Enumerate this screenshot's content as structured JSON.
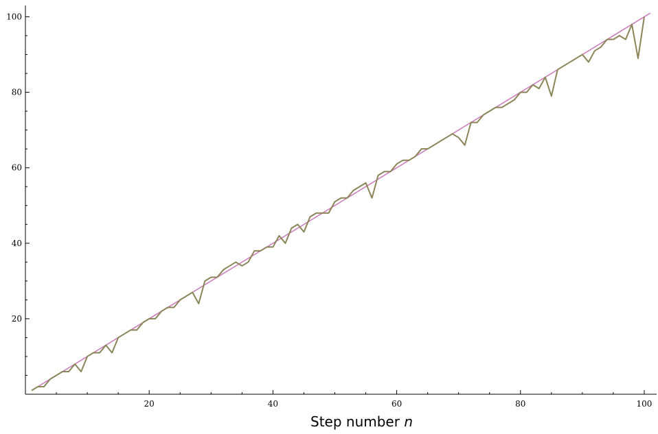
{
  "chart_data": {
    "type": "line",
    "title": "",
    "xlabel": "Step number n",
    "xlabel_parts": {
      "text": "Step number ",
      "variable": "n"
    },
    "ylabel": "",
    "xlim": [
      0,
      102
    ],
    "ylim": [
      0,
      103
    ],
    "xticks": [
      20,
      40,
      60,
      80,
      100
    ],
    "yticks": [
      20,
      40,
      60,
      80,
      100
    ],
    "xtick_labels": [
      "20",
      "40",
      "60",
      "80",
      "100"
    ],
    "ytick_labels": [
      "20",
      "40",
      "60",
      "80",
      "100"
    ],
    "grid": false,
    "legend": "none",
    "series": [
      {
        "color": "#cc77bb",
        "x": [
          1,
          101
        ],
        "y": [
          1,
          101
        ]
      },
      {
        "color": "#8a8456",
        "x": [
          1,
          2,
          3,
          4,
          5,
          6,
          7,
          8,
          9,
          10,
          11,
          12,
          13,
          14,
          15,
          16,
          17,
          18,
          19,
          20,
          21,
          22,
          23,
          24,
          25,
          26,
          27,
          28,
          29,
          30,
          31,
          32,
          33,
          34,
          35,
          36,
          37,
          38,
          39,
          40,
          41,
          42,
          43,
          44,
          45,
          46,
          47,
          48,
          49,
          50,
          51,
          52,
          53,
          54,
          55,
          56,
          57,
          58,
          59,
          60,
          61,
          62,
          63,
          64,
          65,
          66,
          67,
          68,
          69,
          70,
          71,
          72,
          73,
          74,
          75,
          76,
          77,
          78,
          79,
          80,
          81,
          82,
          83,
          84,
          85,
          86,
          87,
          88,
          89,
          90,
          91,
          92,
          93,
          94,
          95,
          96,
          97,
          98,
          99,
          100
        ],
        "y": [
          1,
          2,
          2,
          4,
          5,
          6,
          6,
          8,
          6,
          10,
          11,
          11,
          13,
          11,
          15,
          16,
          17,
          17,
          19,
          20,
          20,
          22,
          23,
          23,
          25,
          26,
          27,
          24,
          30,
          31,
          31,
          33,
          34,
          35,
          34,
          35,
          38,
          38,
          39,
          39,
          42,
          40,
          44,
          45,
          43,
          47,
          48,
          48,
          48,
          51,
          52,
          52,
          54,
          55,
          56,
          52,
          58,
          59,
          59,
          61,
          62,
          62,
          63,
          65,
          65,
          66,
          67,
          68,
          69,
          68,
          66,
          72,
          72,
          74,
          75,
          76,
          76,
          77,
          78,
          80,
          80,
          82,
          81,
          84,
          79,
          86,
          87,
          88,
          89,
          90,
          88,
          91,
          92,
          94,
          94,
          95,
          94,
          98,
          89,
          100
        ]
      }
    ]
  }
}
